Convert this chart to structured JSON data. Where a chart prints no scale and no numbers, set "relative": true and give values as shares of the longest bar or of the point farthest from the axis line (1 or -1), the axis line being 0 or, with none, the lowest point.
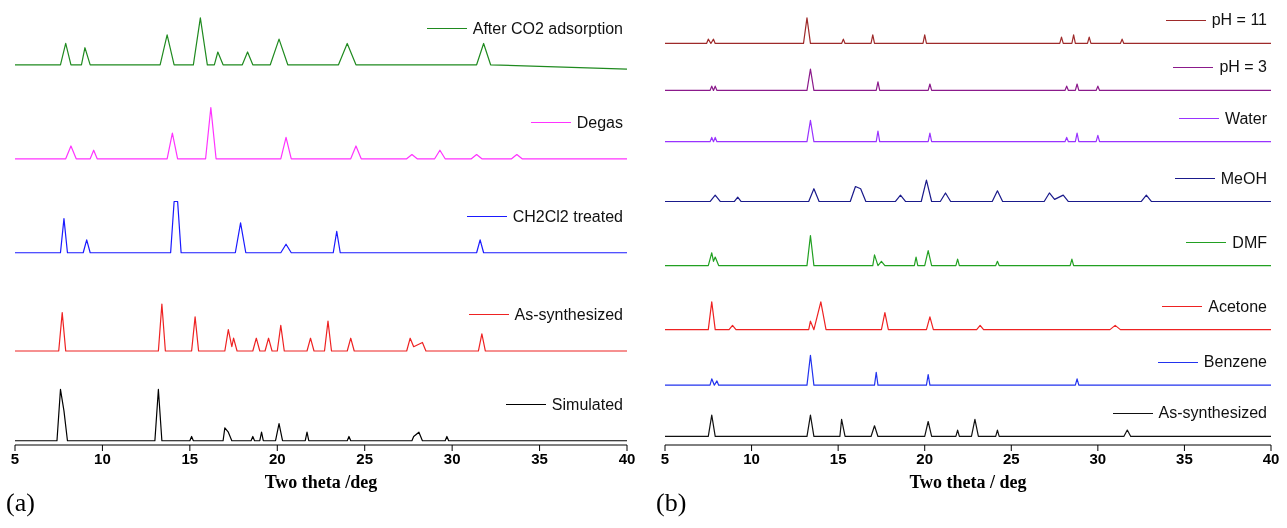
{
  "chart_data": [
    {
      "type": "line",
      "relative": true,
      "xlabel": "Two theta /deg",
      "xlim": [
        5,
        40
      ],
      "xticks": [
        5,
        10,
        15,
        20,
        25,
        30,
        35,
        40
      ],
      "annotations": [
        "(a)"
      ],
      "legend": "right",
      "series": [
        {
          "name": "After CO2 adsorption",
          "color": "#1f8a1f",
          "x": [
            5,
            7.6,
            7.9,
            8.2,
            8.8,
            9.0,
            9.3,
            13.3,
            13.7,
            14.1,
            15.2,
            15.6,
            16.0,
            16.4,
            16.6,
            16.9,
            18.0,
            18.3,
            18.6,
            19.6,
            20.1,
            20.6,
            23.5,
            24.0,
            24.5,
            31.4,
            31.8,
            32.2,
            40
          ],
          "values": [
            0.89,
            0.89,
            0.94,
            0.89,
            0.89,
            0.93,
            0.89,
            0.89,
            0.96,
            0.89,
            0.89,
            1,
            0.89,
            0.89,
            0.92,
            0.89,
            0.89,
            0.92,
            0.89,
            0.89,
            0.95,
            0.89,
            0.89,
            0.94,
            0.89,
            0.89,
            0.94,
            0.89,
            0.88
          ]
        },
        {
          "name": "Degas",
          "color": "#ff33ff",
          "x": [
            5,
            7.9,
            8.2,
            8.5,
            9.3,
            9.5,
            9.7,
            13.7,
            14.0,
            14.3,
            15.9,
            16.2,
            16.5,
            20.2,
            20.5,
            20.8,
            24.2,
            24.5,
            24.8,
            27.4,
            27.7,
            28.0,
            29.0,
            29.3,
            29.6,
            31.1,
            31.4,
            31.7,
            33.4,
            33.7,
            34.0,
            40
          ],
          "values": [
            0.67,
            0.67,
            0.7,
            0.67,
            0.67,
            0.69,
            0.67,
            0.67,
            0.73,
            0.67,
            0.67,
            0.79,
            0.67,
            0.67,
            0.72,
            0.67,
            0.67,
            0.7,
            0.67,
            0.67,
            0.68,
            0.67,
            0.67,
            0.69,
            0.67,
            0.67,
            0.68,
            0.67,
            0.67,
            0.68,
            0.67,
            0.67
          ]
        },
        {
          "name": "CH2Cl2 treated",
          "color": "#1a1aff",
          "x": [
            5,
            7.6,
            7.8,
            8.0,
            8.9,
            9.1,
            9.3,
            13.9,
            14.1,
            14.3,
            14.5,
            17.6,
            17.9,
            18.2,
            20.2,
            20.5,
            20.8,
            23.2,
            23.4,
            23.6,
            31.4,
            31.6,
            31.8,
            40
          ],
          "values": [
            0.45,
            0.45,
            0.53,
            0.45,
            0.45,
            0.48,
            0.45,
            0.45,
            0.57,
            0.57,
            0.45,
            0.45,
            0.52,
            0.45,
            0.45,
            0.47,
            0.45,
            0.45,
            0.5,
            0.45,
            0.45,
            0.48,
            0.45,
            0.45
          ]
        },
        {
          "name": "As-synthesized",
          "color": "#ee2222",
          "x": [
            5,
            7.5,
            7.7,
            7.9,
            13.2,
            13.4,
            13.6,
            15.1,
            15.3,
            15.5,
            17.0,
            17.2,
            17.4,
            17.5,
            17.7,
            18.6,
            18.8,
            19.0,
            19.3,
            19.5,
            19.7,
            20.0,
            20.2,
            20.4,
            21.7,
            21.9,
            22.1,
            22.7,
            22.9,
            23.1,
            24.0,
            24.2,
            24.4,
            27.4,
            27.6,
            27.8,
            28.3,
            28.5,
            31.5,
            31.7,
            31.9,
            40
          ],
          "values": [
            0.22,
            0.22,
            0.31,
            0.22,
            0.22,
            0.33,
            0.22,
            0.22,
            0.3,
            0.22,
            0.22,
            0.27,
            0.23,
            0.25,
            0.22,
            0.22,
            0.25,
            0.22,
            0.22,
            0.25,
            0.22,
            0.22,
            0.28,
            0.22,
            0.22,
            0.25,
            0.22,
            0.22,
            0.29,
            0.22,
            0.22,
            0.25,
            0.22,
            0.22,
            0.25,
            0.23,
            0.24,
            0.22,
            0.22,
            0.26,
            0.22,
            0.22
          ]
        },
        {
          "name": "Simulated",
          "color": "#000000",
          "x": [
            5,
            7.4,
            7.6,
            7.8,
            8.0,
            13.0,
            13.2,
            13.4,
            15.0,
            15.1,
            15.2,
            16.9,
            17.0,
            17.2,
            17.4,
            18.5,
            18.6,
            18.7,
            19.0,
            19.1,
            19.2,
            19.9,
            20.1,
            20.3,
            21.6,
            21.7,
            21.8,
            24.0,
            24.1,
            24.2,
            27.7,
            27.8,
            28.1,
            28.3,
            29.6,
            29.7,
            29.8,
            40
          ],
          "values": [
            0.01,
            0.01,
            0.13,
            0.08,
            0.01,
            0.01,
            0.13,
            0.01,
            0.01,
            0.02,
            0.01,
            0.01,
            0.04,
            0.03,
            0.01,
            0.01,
            0.02,
            0.01,
            0.01,
            0.03,
            0.01,
            0.01,
            0.05,
            0.01,
            0.01,
            0.03,
            0.01,
            0.01,
            0.02,
            0.01,
            0.01,
            0.02,
            0.03,
            0.01,
            0.01,
            0.02,
            0.01,
            0.01
          ]
        }
      ]
    },
    {
      "type": "line",
      "relative": true,
      "xlabel": "Two theta / deg",
      "xlim": [
        5,
        40
      ],
      "xticks": [
        5,
        10,
        15,
        20,
        25,
        30,
        35,
        40
      ],
      "annotations": [
        "(b)"
      ],
      "legend": "right",
      "series": [
        {
          "name": "pH = 11",
          "color": "#9e2a2a",
          "x": [
            5,
            7.4,
            7.5,
            7.65,
            7.8,
            7.9,
            13.0,
            13.2,
            13.4,
            15.2,
            15.3,
            15.4,
            16.9,
            17.0,
            17.1,
            19.9,
            20.0,
            20.1,
            27.8,
            27.9,
            28.0,
            28.5,
            28.6,
            28.7,
            29.4,
            29.5,
            29.6,
            31.3,
            31.4,
            31.5,
            40
          ],
          "values": [
            0.94,
            0.94,
            0.95,
            0.94,
            0.95,
            0.94,
            0.94,
            1,
            0.94,
            0.94,
            0.95,
            0.94,
            0.94,
            0.96,
            0.94,
            0.94,
            0.96,
            0.94,
            0.94,
            0.955,
            0.94,
            0.94,
            0.96,
            0.94,
            0.94,
            0.955,
            0.94,
            0.94,
            0.95,
            0.94,
            0.94
          ]
        },
        {
          "name": "pH = 3",
          "color": "#8b1a8b",
          "x": [
            5,
            7.6,
            7.7,
            7.8,
            7.9,
            8.0,
            13.2,
            13.4,
            13.6,
            17.2,
            17.3,
            17.4,
            20.2,
            20.3,
            20.4,
            28.1,
            28.2,
            28.3,
            28.7,
            28.8,
            28.9,
            29.9,
            30.0,
            30.1,
            40
          ],
          "values": [
            0.83,
            0.83,
            0.84,
            0.83,
            0.84,
            0.83,
            0.83,
            0.88,
            0.83,
            0.83,
            0.85,
            0.83,
            0.83,
            0.845,
            0.83,
            0.83,
            0.84,
            0.83,
            0.83,
            0.845,
            0.83,
            0.83,
            0.84,
            0.83,
            0.83
          ]
        },
        {
          "name": "Water",
          "color": "#9933ff",
          "x": [
            5,
            7.6,
            7.7,
            7.8,
            7.9,
            8.0,
            13.2,
            13.4,
            13.6,
            17.2,
            17.3,
            17.4,
            20.2,
            20.3,
            20.4,
            28.1,
            28.2,
            28.3,
            28.7,
            28.8,
            28.9,
            29.9,
            30.0,
            30.1,
            40
          ],
          "values": [
            0.71,
            0.71,
            0.72,
            0.71,
            0.72,
            0.71,
            0.71,
            0.76,
            0.71,
            0.71,
            0.735,
            0.71,
            0.71,
            0.73,
            0.71,
            0.71,
            0.72,
            0.71,
            0.71,
            0.73,
            0.71,
            0.71,
            0.725,
            0.71,
            0.71
          ]
        },
        {
          "name": "MeOH",
          "color": "#1a1a8b",
          "x": [
            5,
            7.6,
            7.9,
            8.2,
            9.0,
            9.2,
            9.4,
            13.3,
            13.6,
            13.9,
            15.7,
            16.0,
            16.3,
            16.6,
            18.3,
            18.6,
            18.9,
            19.8,
            20.1,
            20.4,
            20.9,
            21.2,
            21.5,
            23.9,
            24.2,
            24.5,
            26.9,
            27.2,
            27.5,
            28.0,
            28.3,
            32.5,
            32.8,
            33.1,
            40
          ],
          "values": [
            0.57,
            0.57,
            0.585,
            0.57,
            0.57,
            0.58,
            0.57,
            0.57,
            0.6,
            0.57,
            0.57,
            0.605,
            0.6,
            0.57,
            0.57,
            0.585,
            0.57,
            0.57,
            0.62,
            0.57,
            0.57,
            0.59,
            0.57,
            0.57,
            0.595,
            0.57,
            0.57,
            0.59,
            0.575,
            0.585,
            0.57,
            0.57,
            0.585,
            0.57,
            0.57
          ]
        },
        {
          "name": "DMF",
          "color": "#22a022",
          "x": [
            5,
            7.5,
            7.7,
            7.8,
            7.9,
            8.1,
            13.2,
            13.4,
            13.6,
            17.0,
            17.1,
            17.3,
            17.5,
            17.7,
            19.4,
            19.5,
            19.6,
            20.0,
            20.2,
            20.4,
            21.8,
            21.9,
            22.0,
            24.1,
            24.2,
            24.3,
            28.4,
            28.5,
            28.6,
            40
          ],
          "values": [
            0.42,
            0.42,
            0.45,
            0.43,
            0.44,
            0.42,
            0.42,
            0.49,
            0.42,
            0.42,
            0.445,
            0.42,
            0.43,
            0.42,
            0.42,
            0.44,
            0.42,
            0.42,
            0.455,
            0.42,
            0.42,
            0.435,
            0.42,
            0.42,
            0.43,
            0.42,
            0.42,
            0.435,
            0.42,
            0.42
          ]
        },
        {
          "name": "Acetone",
          "color": "#ee2222",
          "x": [
            5,
            7.5,
            7.7,
            7.9,
            8.7,
            8.9,
            9.1,
            13.3,
            13.4,
            13.6,
            14.0,
            14.3,
            17.5,
            17.7,
            17.9,
            20.1,
            20.3,
            20.5,
            23.0,
            23.2,
            23.4,
            30.7,
            31.0,
            31.3,
            40
          ],
          "values": [
            0.27,
            0.27,
            0.335,
            0.27,
            0.27,
            0.28,
            0.27,
            0.27,
            0.29,
            0.27,
            0.335,
            0.27,
            0.27,
            0.31,
            0.27,
            0.27,
            0.3,
            0.27,
            0.27,
            0.28,
            0.27,
            0.27,
            0.28,
            0.27,
            0.27
          ]
        },
        {
          "name": "Benzene",
          "color": "#2233ee",
          "x": [
            5,
            7.6,
            7.7,
            7.85,
            8.0,
            8.1,
            13.2,
            13.4,
            13.6,
            17.1,
            17.2,
            17.3,
            20.1,
            20.2,
            20.3,
            28.7,
            28.8,
            28.9,
            40
          ],
          "values": [
            0.14,
            0.14,
            0.155,
            0.14,
            0.15,
            0.14,
            0.14,
            0.21,
            0.14,
            0.14,
            0.17,
            0.14,
            0.14,
            0.165,
            0.14,
            0.14,
            0.155,
            0.14,
            0.14
          ]
        },
        {
          "name": "As-synthesized",
          "color": "#111111",
          "x": [
            5,
            7.5,
            7.7,
            7.9,
            13.2,
            13.4,
            13.6,
            15.1,
            15.2,
            15.4,
            16.9,
            17.1,
            17.3,
            20.0,
            20.2,
            20.4,
            21.8,
            21.9,
            22.0,
            22.7,
            22.9,
            23.1,
            24.1,
            24.2,
            24.3,
            31.5,
            31.7,
            31.9,
            40
          ],
          "values": [
            0.02,
            0.02,
            0.07,
            0.02,
            0.02,
            0.07,
            0.02,
            0.02,
            0.06,
            0.02,
            0.02,
            0.045,
            0.02,
            0.02,
            0.055,
            0.02,
            0.02,
            0.035,
            0.02,
            0.02,
            0.06,
            0.02,
            0.02,
            0.035,
            0.02,
            0.02,
            0.035,
            0.02,
            0.02
          ]
        }
      ]
    }
  ]
}
